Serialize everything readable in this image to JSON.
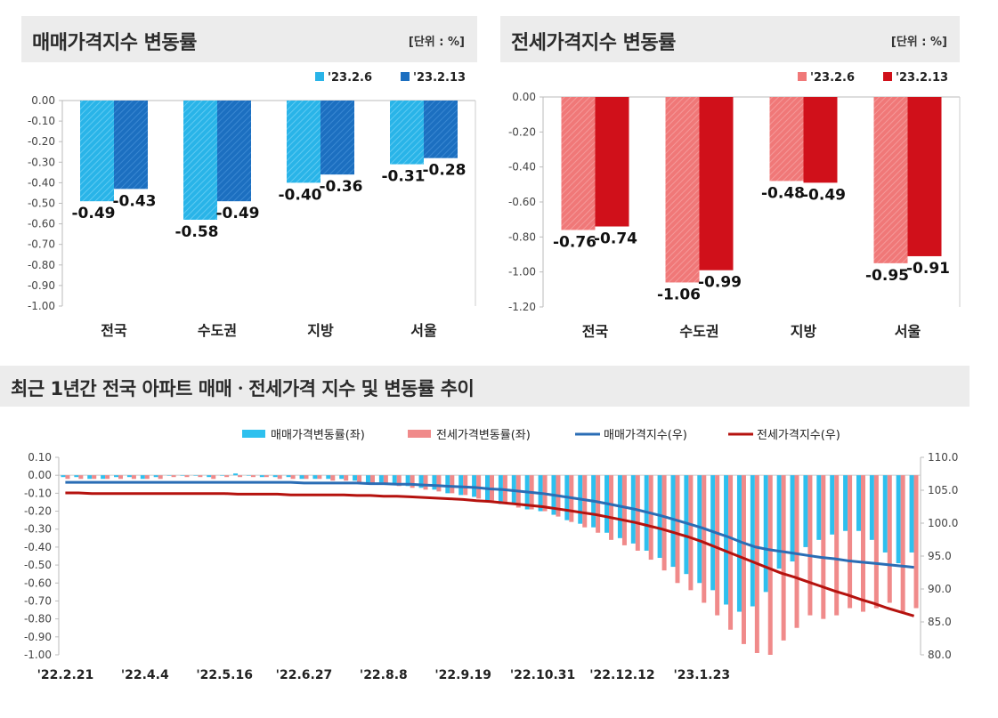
{
  "panels": {
    "sale": {
      "title": "매매가격지수 변동률",
      "unit": "[단위 : %]"
    },
    "jeonse": {
      "title": "전세가격지수 변동률",
      "unit": "[단위 : %]"
    },
    "trend": {
      "title": "최근 1년간 전국 아파트 매매ㆍ전세가격 지수 및 변동률 추이"
    }
  },
  "colors": {
    "sale_light": "#29b4e8",
    "sale_dark": "#1c6fc0",
    "jeonse_light": "#f07878",
    "jeonse_dark": "#d0101a",
    "sale_index": "#2a6db5",
    "jeonse_index": "#b5120e"
  },
  "chart_data": [
    {
      "type": "bar",
      "categories": [
        "전국",
        "수도권",
        "지방",
        "서울"
      ],
      "series": [
        {
          "name": "'23.2.6",
          "values": [
            -0.49,
            -0.58,
            -0.4,
            -0.31
          ]
        },
        {
          "name": "'23.2.13",
          "values": [
            -0.43,
            -0.49,
            -0.36,
            -0.28
          ]
        }
      ],
      "value_labels": [
        [
          "-0.49",
          "-0.58",
          "-0.40",
          "-0.31"
        ],
        [
          "-0.43",
          "-0.49",
          "-0.36",
          "-0.28"
        ]
      ],
      "ylim": [
        -1.0,
        0.0
      ],
      "yticks": [
        "0.00",
        "-0.10",
        "-0.20",
        "-0.30",
        "-0.40",
        "-0.50",
        "-0.60",
        "-0.70",
        "-0.80",
        "-0.90",
        "-1.00"
      ],
      "legend": "top-right"
    },
    {
      "type": "bar",
      "categories": [
        "전국",
        "수도권",
        "지방",
        "서울"
      ],
      "series": [
        {
          "name": "'23.2.6",
          "values": [
            -0.76,
            -1.06,
            -0.48,
            -0.95
          ]
        },
        {
          "name": "'23.2.13",
          "values": [
            -0.74,
            -0.99,
            -0.49,
            -0.91
          ]
        }
      ],
      "value_labels": [
        [
          "-0.76",
          "-1.06",
          "-0.48",
          "-0.95"
        ],
        [
          "-0.74",
          "-0.99",
          "-0.49",
          "-0.91"
        ]
      ],
      "ylim": [
        -1.2,
        0.0
      ],
      "yticks": [
        "0.00",
        "-0.20",
        "-0.40",
        "-0.60",
        "-0.80",
        "-1.00",
        "-1.20"
      ],
      "legend": "top-right"
    },
    {
      "type": "bar",
      "combo": "bar+line",
      "x_ticks": [
        "'22.2.21",
        "'22.4.4",
        "'22.5.16",
        "'22.6.27",
        "'22.8.8",
        "'22.9.19",
        "'22.10.31",
        "'22.12.12",
        "'23.1.23"
      ],
      "y_left_ticks": [
        "0.10",
        "0.00",
        "-0.10",
        "-0.20",
        "-0.30",
        "-0.40",
        "-0.50",
        "-0.60",
        "-0.70",
        "-0.80",
        "-0.90",
        "-1.00"
      ],
      "y_right_ticks": [
        "110.0",
        "105.0",
        "100.0",
        "95.0",
        "90.0",
        "85.0",
        "80.0"
      ],
      "ylim_left": [
        -1.0,
        0.1
      ],
      "ylim_right": [
        80.0,
        110.0
      ],
      "series": [
        {
          "name": "매매가격변동률(좌)",
          "axis": "left",
          "kind": "bar",
          "values": [
            -0.01,
            -0.01,
            -0.02,
            -0.02,
            -0.01,
            -0.01,
            -0.02,
            -0.01,
            0.0,
            0.0,
            0.0,
            -0.01,
            0.0,
            0.01,
            0.0,
            -0.01,
            -0.01,
            -0.01,
            -0.02,
            -0.02,
            -0.02,
            -0.02,
            -0.03,
            -0.04,
            -0.04,
            -0.05,
            -0.06,
            -0.07,
            -0.08,
            -0.1,
            -0.11,
            -0.12,
            -0.14,
            -0.16,
            -0.16,
            -0.19,
            -0.2,
            -0.22,
            -0.25,
            -0.27,
            -0.29,
            -0.32,
            -0.35,
            -0.38,
            -0.42,
            -0.46,
            -0.51,
            -0.55,
            -0.6,
            -0.64,
            -0.72,
            -0.76,
            -0.73,
            -0.65,
            -0.52,
            -0.48,
            -0.4,
            -0.36,
            -0.33,
            -0.31,
            -0.31,
            -0.36,
            -0.43,
            -0.49,
            -0.43
          ]
        },
        {
          "name": "전세가격변동률(좌)",
          "axis": "left",
          "kind": "bar",
          "values": [
            -0.02,
            -0.02,
            -0.02,
            -0.02,
            -0.02,
            -0.02,
            -0.02,
            -0.02,
            -0.01,
            -0.01,
            -0.01,
            -0.02,
            -0.01,
            -0.01,
            -0.01,
            -0.01,
            -0.02,
            -0.02,
            -0.02,
            -0.02,
            -0.03,
            -0.03,
            -0.04,
            -0.05,
            -0.05,
            -0.06,
            -0.07,
            -0.08,
            -0.09,
            -0.1,
            -0.11,
            -0.13,
            -0.14,
            -0.15,
            -0.18,
            -0.19,
            -0.2,
            -0.23,
            -0.26,
            -0.29,
            -0.32,
            -0.36,
            -0.39,
            -0.42,
            -0.47,
            -0.53,
            -0.6,
            -0.64,
            -0.71,
            -0.78,
            -0.86,
            -0.94,
            -0.99,
            -1.0,
            -0.92,
            -0.85,
            -0.78,
            -0.8,
            -0.78,
            -0.74,
            -0.76,
            -0.74,
            -0.71,
            -0.76,
            -0.74
          ]
        },
        {
          "name": "매매가격지수(우)",
          "axis": "right",
          "kind": "line",
          "values": [
            106.2,
            106.2,
            106.2,
            106.2,
            106.2,
            106.2,
            106.2,
            106.2,
            106.2,
            106.2,
            106.2,
            106.2,
            106.2,
            106.2,
            106.2,
            106.2,
            106.2,
            106.2,
            106.1,
            106.1,
            106.1,
            106.1,
            106.1,
            106.0,
            106.0,
            105.9,
            105.9,
            105.8,
            105.7,
            105.6,
            105.5,
            105.4,
            105.2,
            105.1,
            104.9,
            104.7,
            104.5,
            104.2,
            103.9,
            103.6,
            103.3,
            102.9,
            102.5,
            102.1,
            101.6,
            101.1,
            100.5,
            99.9,
            99.3,
            98.6,
            97.9,
            97.1,
            96.4,
            96.0,
            95.7,
            95.4,
            95.1,
            94.8,
            94.6,
            94.3,
            94.1,
            93.9,
            93.7,
            93.5,
            93.3
          ]
        },
        {
          "name": "전세가격지수(우)",
          "axis": "right",
          "kind": "line",
          "values": [
            104.6,
            104.6,
            104.5,
            104.5,
            104.5,
            104.5,
            104.5,
            104.5,
            104.5,
            104.5,
            104.5,
            104.5,
            104.5,
            104.4,
            104.4,
            104.4,
            104.4,
            104.3,
            104.3,
            104.3,
            104.3,
            104.3,
            104.2,
            104.2,
            104.1,
            104.1,
            104.0,
            103.9,
            103.8,
            103.7,
            103.6,
            103.4,
            103.3,
            103.1,
            102.9,
            102.7,
            102.5,
            102.2,
            101.9,
            101.6,
            101.3,
            100.9,
            100.5,
            100.1,
            99.6,
            99.1,
            98.5,
            97.9,
            97.2,
            96.4,
            95.6,
            94.8,
            94.0,
            93.2,
            92.4,
            91.8,
            91.1,
            90.4,
            89.7,
            89.1,
            88.4,
            87.8,
            87.1,
            86.5,
            85.9
          ]
        }
      ],
      "legend": "top"
    }
  ]
}
